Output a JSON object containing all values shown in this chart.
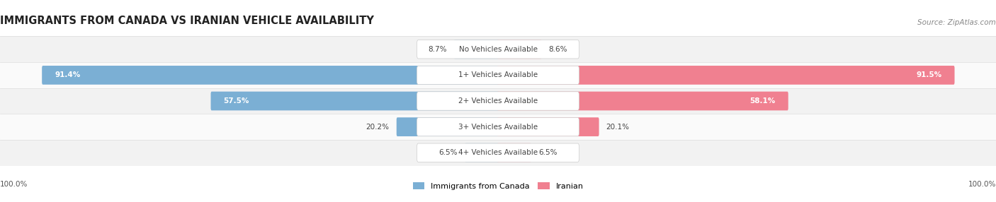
{
  "title": "IMMIGRANTS FROM CANADA VS IRANIAN VEHICLE AVAILABILITY",
  "source": "Source: ZipAtlas.com",
  "categories": [
    "No Vehicles Available",
    "1+ Vehicles Available",
    "2+ Vehicles Available",
    "3+ Vehicles Available",
    "4+ Vehicles Available"
  ],
  "canada_values": [
    8.7,
    91.4,
    57.5,
    20.2,
    6.5
  ],
  "iranian_values": [
    8.6,
    91.5,
    58.1,
    20.1,
    6.5
  ],
  "canada_color": "#7BAFD4",
  "iranian_color": "#F08090",
  "row_colors": [
    "#F2F2F2",
    "#FAFAFA",
    "#F2F2F2",
    "#FAFAFA",
    "#F2F2F2"
  ],
  "label_color_dark": "#444444",
  "label_color_white": "#FFFFFF",
  "legend_canada": "Immigrants from Canada",
  "legend_iranian": "Iranian",
  "axis_label_left": "100.0%",
  "axis_label_right": "100.0%",
  "max_value": 100.0,
  "fig_width": 14.06,
  "fig_height": 2.86,
  "fig_bg": "#FFFFFF",
  "title_fontsize": 10.5,
  "source_fontsize": 7.5,
  "bar_label_fontsize": 7.5,
  "category_fontsize": 7.5,
  "legend_fontsize": 8.0,
  "axis_label_fontsize": 7.5
}
